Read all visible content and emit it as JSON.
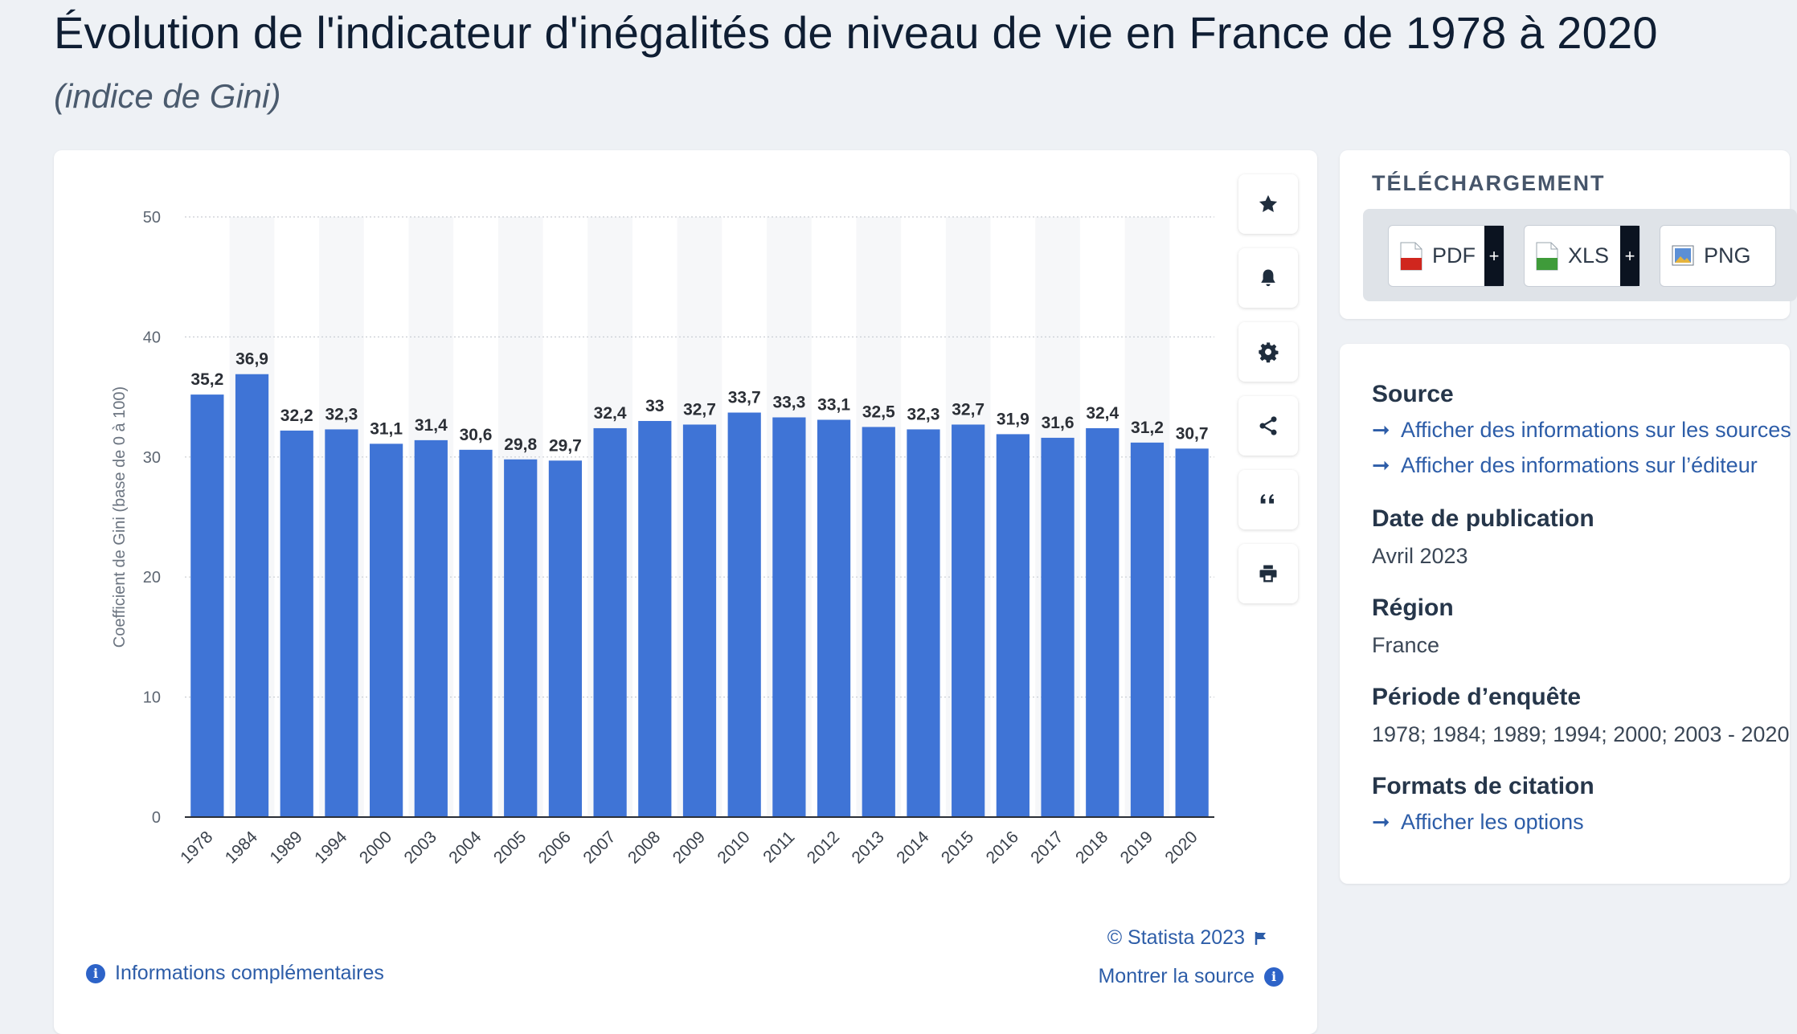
{
  "header": {
    "title": "Évolution de l'indicateur d'inégalités de niveau de vie en France de 1978 à 2020",
    "subtitle": "(indice de Gini)"
  },
  "chart_data": {
    "type": "bar",
    "categories": [
      "1978",
      "1984",
      "1989",
      "1994",
      "2000",
      "2003",
      "2004",
      "2005",
      "2006",
      "2007",
      "2008",
      "2009",
      "2010",
      "2011",
      "2012",
      "2013",
      "2014",
      "2015",
      "2016",
      "2017",
      "2018",
      "2019",
      "2020"
    ],
    "values": [
      35.2,
      36.9,
      32.2,
      32.3,
      31.1,
      31.4,
      30.6,
      29.8,
      29.7,
      32.4,
      33,
      32.7,
      33.7,
      33.3,
      33.1,
      32.5,
      32.3,
      32.7,
      31.9,
      31.6,
      32.4,
      31.2,
      30.7
    ],
    "value_labels": [
      "35,2",
      "36,9",
      "32,2",
      "32,3",
      "31,1",
      "31,4",
      "30,6",
      "29,8",
      "29,7",
      "32,4",
      "33",
      "32,7",
      "33,7",
      "33,3",
      "33,1",
      "32,5",
      "32,3",
      "32,7",
      "31,9",
      "31,6",
      "32,4",
      "31,2",
      "30,7"
    ],
    "ylabel": "Coefficient de Gini (base de 0 à 100)",
    "ylim": [
      0,
      50
    ],
    "yticks": [
      "0",
      "10",
      "20",
      "30",
      "40",
      "50"
    ],
    "bar_color": "#3f74d6",
    "grid": true
  },
  "chart_footer": {
    "copyright": "© Statista 2023",
    "show_source": "Montrer la source",
    "more_info": "Informations complémentaires"
  },
  "toolbar": {
    "icons": [
      "star-icon",
      "bell-icon",
      "gear-icon",
      "share-icon",
      "quote-icon",
      "print-icon"
    ]
  },
  "download": {
    "heading": "TÉLÉCHARGEMENT",
    "buttons": [
      {
        "label": "PDF",
        "plus": "+"
      },
      {
        "label": "XLS",
        "plus": "+"
      },
      {
        "label": "PNG"
      }
    ]
  },
  "details": {
    "source_label": "Source",
    "source_links": [
      "Afficher des informations sur les sources",
      "Afficher des informations sur l’éditeur"
    ],
    "date_label": "Date de publication",
    "date_value": "Avril 2023",
    "region_label": "Région",
    "region_value": "France",
    "period_label": "Période d’enquête",
    "period_value": "1978; 1984; 1989; 1994; 2000; 2003 - 2020",
    "citation_label": "Formats de citation",
    "citation_link": "Afficher les options",
    "arrow": "➞"
  },
  "colors": {
    "accent": "#2d5da8",
    "bar": "#3f74d6",
    "background": "#eef1f5"
  }
}
